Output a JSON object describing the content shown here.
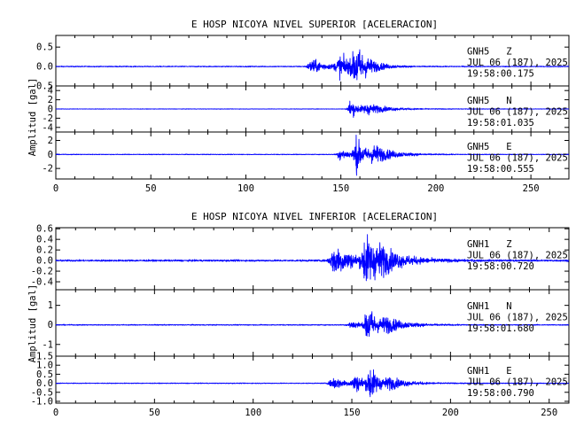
{
  "chart_data": [
    {
      "type": "line",
      "title": "E HOSP NICOYA NIVEL SUPERIOR [ACELERACION]",
      "ylabel": "Amplitud [gal]",
      "xlabel": "",
      "xlim": [
        0,
        270
      ],
      "x_ticks": [
        "0",
        "50",
        "100",
        "150",
        "200",
        "250"
      ],
      "series": [
        {
          "name": "GNH5   Z",
          "date": "JUL 06 (187), 2025",
          "time": "19:58:00.175",
          "ylim": [
            -0.5,
            0.8
          ],
          "y_ticks": [
            "0.5",
            "0.0",
            "-0.5"
          ],
          "events": [
            {
              "t": 135,
              "amp": 0.22,
              "dur": 12
            },
            {
              "t": 150,
              "amp": 0.32,
              "dur": 14
            },
            {
              "t": 158,
              "amp": 0.58,
              "dur": 10
            }
          ],
          "noise": 0.015
        },
        {
          "name": "GNH5   N",
          "date": "JUL 06 (187), 2025",
          "time": "19:58:01.035",
          "ylim": [
            -5,
            5
          ],
          "y_ticks": [
            "4",
            "2",
            "0",
            "-2",
            "-4"
          ],
          "events": [
            {
              "t": 155,
              "amp": 2.4,
              "dur": 7
            },
            {
              "t": 165,
              "amp": 1.2,
              "dur": 18
            }
          ],
          "noise": 0.06
        },
        {
          "name": "GNH5   E",
          "date": "JUL 06 (187), 2025",
          "time": "19:58:00.555",
          "ylim": [
            -3.5,
            3.2
          ],
          "y_ticks": [
            "2",
            "0",
            "-2"
          ],
          "events": [
            {
              "t": 150,
              "amp": 1.0,
              "dur": 10
            },
            {
              "t": 158,
              "amp": 2.9,
              "dur": 7
            },
            {
              "t": 168,
              "amp": 1.4,
              "dur": 16
            }
          ],
          "noise": 0.06
        }
      ]
    },
    {
      "type": "line",
      "title": "E HOSP NICOYA NIVEL INFERIOR [ACELERACION]",
      "ylabel": "Amplitud [gal]",
      "xlabel": "",
      "xlim": [
        0,
        260
      ],
      "x_ticks": [
        "0",
        "50",
        "100",
        "150",
        "200",
        "250"
      ],
      "series": [
        {
          "name": "GNH1   Z",
          "date": "JUL 06 (187), 2025",
          "time": "19:58:00.720",
          "ylim": [
            -0.55,
            0.62
          ],
          "y_ticks": [
            "0.6",
            "0.4",
            "0.2",
            "0.0",
            "-0.2",
            "-0.4"
          ],
          "events": [
            {
              "t": 142,
              "amp": 0.35,
              "dur": 15
            },
            {
              "t": 157,
              "amp": 0.55,
              "dur": 10
            },
            {
              "t": 165,
              "amp": 0.2,
              "dur": 22
            }
          ],
          "noise": 0.02
        },
        {
          "name": "GNH1   N",
          "date": "JUL 06 (187), 2025",
          "time": "19:58:01.680",
          "ylim": [
            -1.6,
            1.8
          ],
          "y_ticks": [
            "1",
            "0",
            "-1"
          ],
          "events": [
            {
              "t": 150,
              "amp": 0.25,
              "dur": 10
            },
            {
              "t": 158,
              "amp": 1.3,
              "dur": 7
            },
            {
              "t": 168,
              "amp": 0.4,
              "dur": 16
            }
          ],
          "noise": 0.03
        },
        {
          "name": "GNH1   E",
          "date": "JUL 06 (187), 2025",
          "time": "19:58:00.790",
          "ylim": [
            -1.1,
            1.5
          ],
          "y_ticks": [
            "1.5",
            "1.0",
            "0.5",
            "0.0",
            "-0.5",
            "-1.0"
          ],
          "events": [
            {
              "t": 141,
              "amp": 0.4,
              "dur": 12
            },
            {
              "t": 152,
              "amp": 0.5,
              "dur": 10
            },
            {
              "t": 159,
              "amp": 1.1,
              "dur": 7
            },
            {
              "t": 170,
              "amp": 0.3,
              "dur": 16
            }
          ],
          "noise": 0.025
        }
      ]
    }
  ],
  "colors": {
    "trace": "#0000ff",
    "axis": "#000000",
    "background": "#ffffff"
  }
}
